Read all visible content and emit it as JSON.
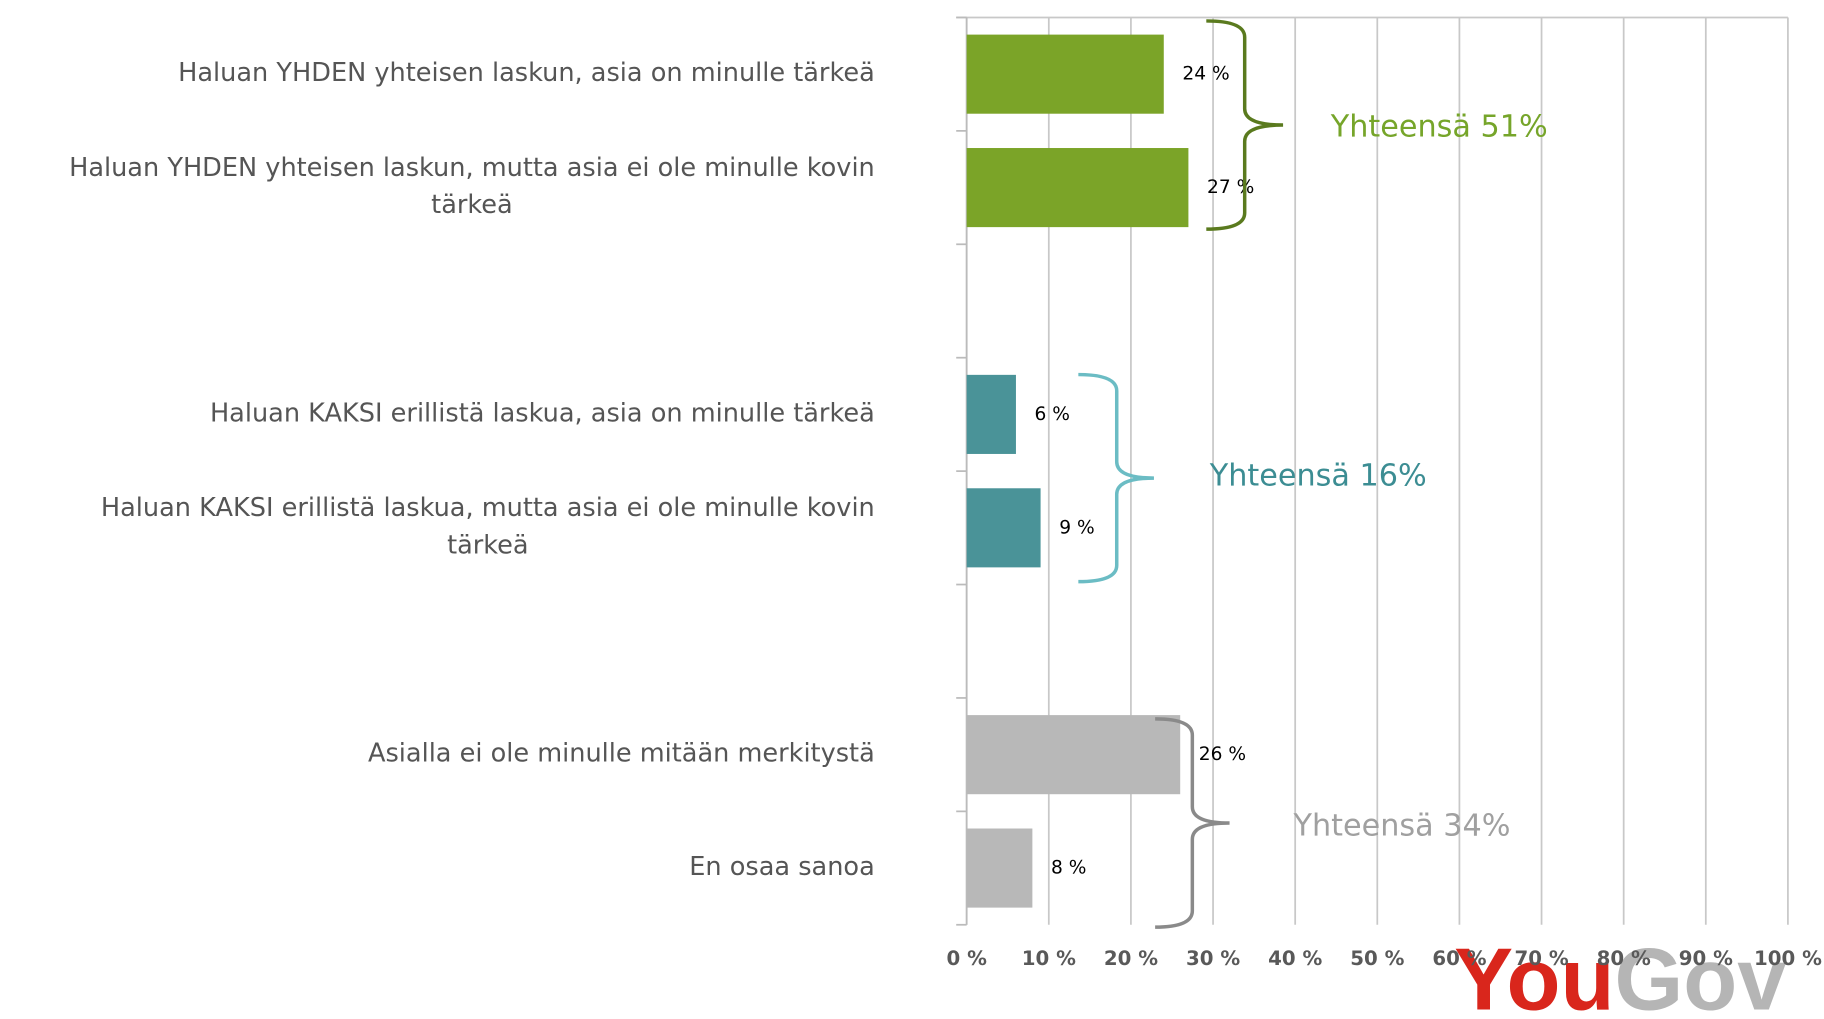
{
  "chart_data": {
    "type": "hbar",
    "categories": [
      "Haluan YHDEN yhteisen laskun, asia on minulle tärkeä",
      "Haluan YHDEN yhteisen laskun, mutta asia ei ole minulle kovin tärkeä",
      null,
      "Haluan KAKSI erillistä laskua, asia on minulle tärkeä",
      "Haluan KAKSI erillistä laskua, mutta asia ei ole minulle kovin tärkeä",
      null,
      "Asialla ei ole minulle mitään merkitystä",
      "En osaa sanoa"
    ],
    "values": [
      24,
      27,
      null,
      6,
      9,
      null,
      26,
      8
    ],
    "value_labels": [
      "24 %",
      "27 %",
      null,
      "6 %",
      "9 %",
      null,
      "26 %",
      "8 %"
    ],
    "colors": [
      "#7ba428",
      "#7ba428",
      null,
      "#4a9398",
      "#4a9398",
      null,
      "#b8b8b8",
      "#b8b8b8"
    ],
    "xlim": [
      0,
      100
    ],
    "xticks": [
      {
        "value": 0,
        "label": "0 %"
      },
      {
        "value": 10,
        "label": "10 %"
      },
      {
        "value": 20,
        "label": "20 %"
      },
      {
        "value": 30,
        "label": "30 %"
      },
      {
        "value": 40,
        "label": "40 %"
      },
      {
        "value": 50,
        "label": "50 %"
      },
      {
        "value": 60,
        "label": "60 %"
      },
      {
        "value": 70,
        "label": "70 %"
      },
      {
        "value": 80,
        "label": "80 %"
      },
      {
        "value": 90,
        "label": "90 %"
      },
      {
        "value": 100,
        "label": "100 %"
      }
    ],
    "grid": true,
    "annotations": [
      {
        "text": "Yhteensä 51%",
        "color": "#76a52a",
        "bracket_color": "#5a7a1e"
      },
      {
        "text": "Yhteensä 16%",
        "color": "#3c8d93",
        "bracket_color": "#6bbcc4"
      },
      {
        "text": "Yhteensä 34%",
        "color": "#a0a0a0",
        "bracket_color": "#8a8a8a"
      }
    ],
    "logo": {
      "you": "You",
      "gov": "Gov"
    }
  }
}
